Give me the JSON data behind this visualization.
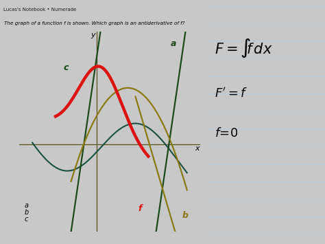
{
  "title": "The graph of a function f is shown. Which graph is an antiderivative of f?",
  "toolbar_text": "Lucas's Notebook • Numerade",
  "left_bg": "#a8c4cc",
  "right_bg": "#f0f0ee",
  "graph_labels": {
    "y": "y",
    "x": "x",
    "a": "a",
    "b": "b",
    "c": "c",
    "f": "f"
  },
  "curves": {
    "red_f": {
      "color": "#dd1111",
      "linewidth": 3.2
    },
    "dark_green": {
      "color": "#1a4a1a",
      "linewidth": 1.6
    },
    "olive": {
      "color": "#8a7a10",
      "linewidth": 1.6
    },
    "teal_sin": {
      "color": "#1a5040",
      "linewidth": 1.5
    }
  },
  "axes_color": "#5a5020",
  "label_colors": {
    "a": "#1a4a1a",
    "b": "#8a7a10",
    "c": "#1a4a1a",
    "f": "#dd1111"
  }
}
